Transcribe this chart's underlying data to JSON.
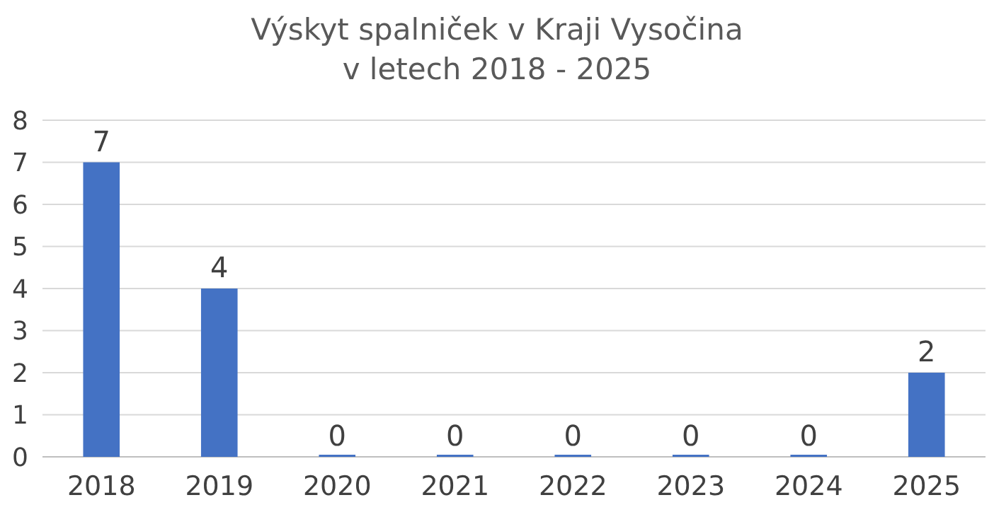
{
  "chart_data": {
    "type": "bar",
    "title": "Výskyt spalniček v Kraji Vysočina\nv letech 2018 - 2025",
    "categories": [
      "2018",
      "2019",
      "2020",
      "2021",
      "2022",
      "2023",
      "2024",
      "2025"
    ],
    "values": [
      7,
      4,
      0,
      0,
      0,
      0,
      0,
      2
    ],
    "color": "#4472c4",
    "ylim": [
      0,
      8
    ],
    "yticks": [
      0,
      1,
      2,
      3,
      4,
      5,
      6,
      7,
      8
    ],
    "grid": "y",
    "data_labels": true
  }
}
